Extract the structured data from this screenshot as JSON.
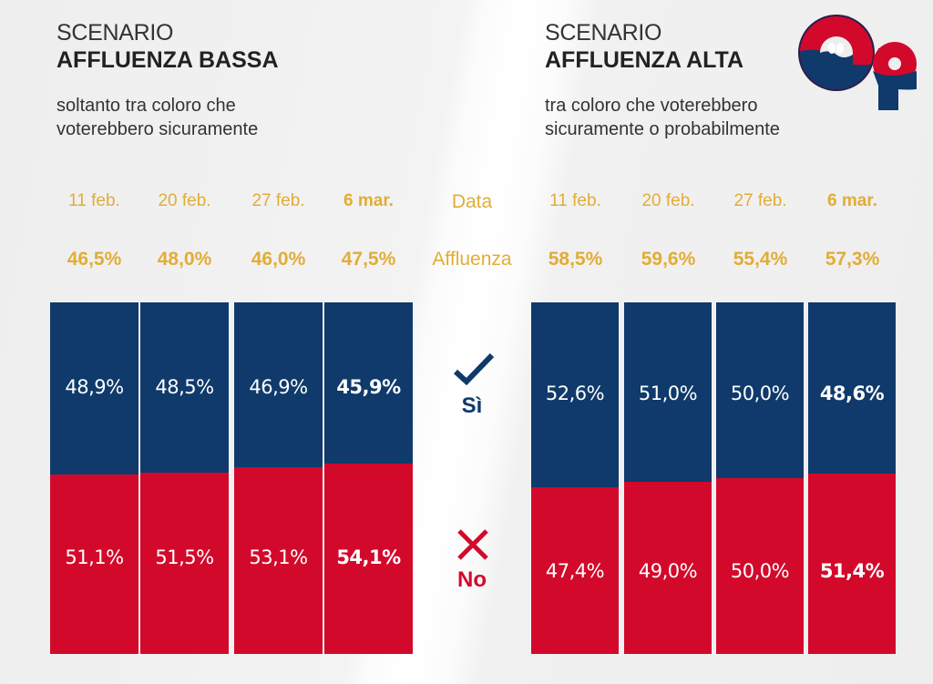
{
  "logo_text": "OP",
  "chart_data": [
    {
      "type": "bar",
      "stacked": true,
      "title": "SCENARIO",
      "title_bold": "AFFLUENZA BASSA",
      "subtitle_lines": [
        "soltanto tra coloro che",
        "voterebbero sicuramente"
      ],
      "categories": [
        "11 feb.",
        "20 feb.",
        "27 feb.",
        "6 mar."
      ],
      "turnout_labels": [
        "46,5%",
        "48,0%",
        "46,0%",
        "47,5%"
      ],
      "turnout": [
        46.5,
        48.0,
        46.0,
        47.5
      ],
      "series": [
        {
          "name": "Sì",
          "values": [
            48.9,
            48.5,
            46.9,
            45.9
          ],
          "labels": [
            "48,9%",
            "48,5%",
            "46,9%",
            "45,9%"
          ],
          "color": "#0f3a6b"
        },
        {
          "name": "No",
          "values": [
            51.1,
            51.5,
            53.1,
            54.1
          ],
          "labels": [
            "51,1%",
            "51,5%",
            "53,1%",
            "54,1%"
          ],
          "color": "#d3092b"
        }
      ],
      "ylim": [
        0,
        100
      ]
    },
    {
      "type": "bar",
      "stacked": true,
      "title": "SCENARIO",
      "title_bold": "AFFLUENZA ALTA",
      "subtitle_lines": [
        "tra coloro che voterebbero",
        "sicuramente o probabilmente"
      ],
      "categories": [
        "11 feb.",
        "20 feb.",
        "27 feb.",
        "6 mar."
      ],
      "turnout_labels": [
        "58,5%",
        "59,6%",
        "55,4%",
        "57,3%"
      ],
      "turnout": [
        58.5,
        59.6,
        55.4,
        57.3
      ],
      "series": [
        {
          "name": "Sì",
          "values": [
            52.6,
            51.0,
            50.0,
            48.6
          ],
          "labels": [
            "52,6%",
            "51,0%",
            "50,0%",
            "48,6%"
          ],
          "color": "#0f3a6b"
        },
        {
          "name": "No",
          "values": [
            47.4,
            49.0,
            50.0,
            51.4
          ],
          "labels": [
            "47,4%",
            "49,0%",
            "50,0%",
            "51,4%"
          ],
          "color": "#d3092b"
        }
      ],
      "ylim": [
        0,
        100
      ]
    }
  ],
  "center": {
    "date_label": "Data",
    "turnout_label": "Affluenza",
    "yes_label": "Sì",
    "no_label": "No"
  },
  "colors": {
    "navy": "#0f3a6b",
    "red": "#d3092b",
    "gold": "#e2ad35"
  }
}
